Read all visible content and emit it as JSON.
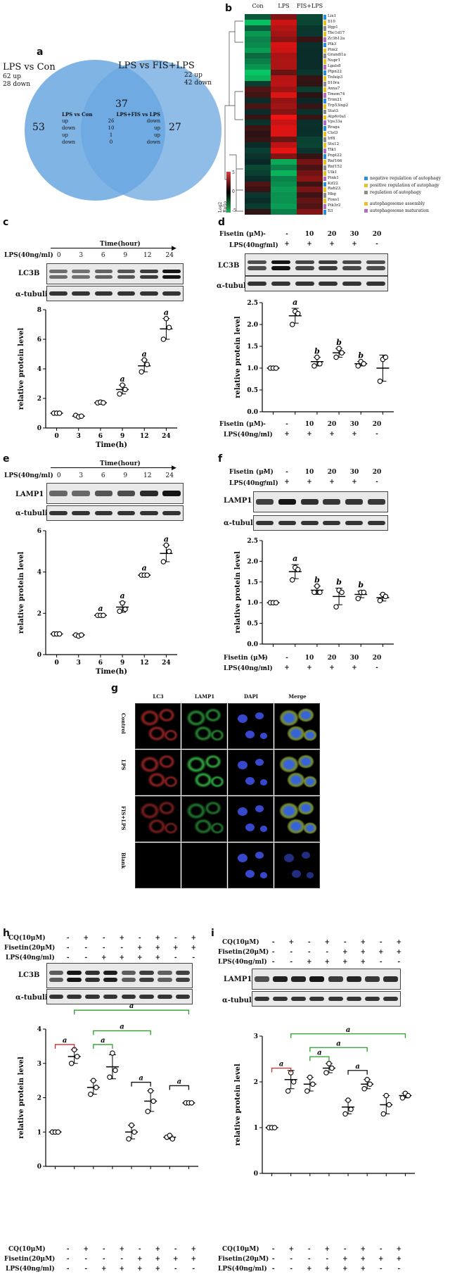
{
  "panels": {
    "a": {
      "label": "a",
      "left_title": "LPS vs Con",
      "left_up": "62 up",
      "left_down": "28 down",
      "right_title": "LPS vs FIS+LPS",
      "right_up": "22 up",
      "right_down": "42 down",
      "left_only": "53",
      "overlap": "37",
      "right_only": "27",
      "table_head_left": "LPS vs Con",
      "table_head_right": "LPS+FIS vs LPS",
      "rows": [
        {
          "l": "up",
          "n": "26",
          "r": "down"
        },
        {
          "l": "down",
          "n": "10",
          "r": "up"
        },
        {
          "l": "up",
          "n": "1",
          "r": "up"
        },
        {
          "l": "down",
          "n": "0",
          "r": "down"
        }
      ]
    },
    "b": {
      "label": "b",
      "columns": [
        "Con",
        "LPS",
        "FIS+LPS"
      ],
      "genes": [
        "Lix1",
        "Il10",
        "Ifgp1",
        "Tbc1d17",
        "Zc3h12a",
        "Plk3",
        "Pim2",
        "Grandl1a",
        "Nupr1",
        "Lgals8",
        "Ptpn22",
        "Tnfaip3",
        "Il10ra",
        "Anxa7",
        "Tmem74",
        "Trim21",
        "Trp53inp2",
        "Stat3",
        "Atp6v0a1",
        "Vps33a",
        "Rraga",
        "Ctsl3",
        "Irf8",
        "Stx12",
        "Tlk1",
        "Pnpt22",
        "Rnf166",
        "Rnf152",
        "Ulk1",
        "Pink1",
        "Kif22",
        "Rab23",
        "Hbg",
        "Foxo1",
        "Pik3r2",
        "Il3"
      ],
      "scale_title": "Log2 Ratio",
      "scale_ticks": [
        "5",
        "0",
        "-5"
      ],
      "legend": [
        {
          "text": "negative regulation of autophagy",
          "color": "#2a8fd6"
        },
        {
          "text": "positive regulation of autophagy",
          "color": "#e6c229"
        },
        {
          "text": "regulation of autophagy",
          "color": "#8c8c8c"
        },
        {
          "text": "autophagosome assembly",
          "color": "#e6c229"
        },
        {
          "text": "autophagosome maturation",
          "color": "#b36bbf"
        }
      ]
    },
    "c": {
      "label": "c",
      "time_title": "Time(hour)",
      "lps_label": "LPS(40ng/ml)",
      "times": [
        "0",
        "3",
        "6",
        "9",
        "12",
        "24"
      ],
      "blot_top": "LC3B",
      "blot_bottom": "α-tubulin",
      "ylabel": "relative protein level",
      "xlabel": "Time(h)"
    },
    "d": {
      "label": "d",
      "fis_label": "Fisetin (μM)",
      "lps_label": "LPS(40ng/ml)",
      "fis_values": [
        "-",
        "-",
        "10",
        "20",
        "30",
        "20"
      ],
      "lps_values": [
        "-",
        "+",
        "+",
        "+",
        "+",
        "-"
      ],
      "blot_top": "LC3B",
      "blot_bottom": "α-tubulin",
      "ylabel": "relative protein level"
    },
    "e": {
      "label": "e",
      "time_title": "Time(hour)",
      "lps_label": "LPS(40ng/ml)",
      "times": [
        "0",
        "3",
        "6",
        "9",
        "12",
        "24"
      ],
      "blot_top": "LAMP1",
      "blot_bottom": "α-tubulin",
      "ylabel": "relative protein level",
      "xlabel": "Time(h)"
    },
    "f": {
      "label": "f",
      "fis_label": "Fisetin (μM)",
      "lps_label": "LPS(40ng/ml)",
      "fis_values": [
        "-",
        "-",
        "10",
        "20",
        "30",
        "20"
      ],
      "lps_values": [
        "-",
        "+",
        "+",
        "+",
        "+",
        "-"
      ],
      "blot_top": "LAMP1",
      "blot_bottom": "α-tubulin",
      "ylabel": "relative protein level"
    },
    "g": {
      "label": "g",
      "cols": [
        "LC3",
        "LAMP1",
        "DAPI",
        "Merge"
      ],
      "rows": [
        "Control",
        "LPS",
        "FIS+LPS",
        "Blank"
      ]
    },
    "h": {
      "label": "h",
      "cq_label": "CQ(10μM)",
      "fis_label": "Fisetin(20μM)",
      "lps_label": "LPS(40ng/ml)",
      "cq_values": [
        "-",
        "+",
        "-",
        "+",
        "-",
        "+",
        "-",
        "+"
      ],
      "fis_values": [
        "-",
        "-",
        "-",
        "-",
        "+",
        "+",
        "+",
        "+"
      ],
      "lps_values": [
        "-",
        "-",
        "+",
        "+",
        "+",
        "+",
        "-",
        "-"
      ],
      "blot_top": "LC3B",
      "blot_bottom": "α-tubulin",
      "ylabel": "relative protein level"
    },
    "i": {
      "label": "i",
      "cq_label": "CQ(10μM)",
      "fis_label": "Fisetin(20μM)",
      "lps_label": "LPS(40ng/ml)",
      "cq_values": [
        "-",
        "+",
        "-",
        "+",
        "-",
        "+",
        "-",
        "+"
      ],
      "fis_values": [
        "-",
        "-",
        "-",
        "-",
        "+",
        "+",
        "+",
        "+"
      ],
      "lps_values": [
        "-",
        "-",
        "+",
        "+",
        "+",
        "+",
        "-",
        "-"
      ],
      "blot_top": "LAMP1",
      "blot_bottom": "α-tubulin",
      "ylabel": "relative protein level"
    }
  },
  "chart_data": [
    {
      "id": "c",
      "type": "scatter",
      "categories": [
        "0",
        "3",
        "6",
        "9",
        "12",
        "24"
      ],
      "means": [
        1.0,
        0.8,
        1.7,
        2.6,
        4.2,
        6.7
      ],
      "points": [
        [
          1.0,
          1.0,
          1.0
        ],
        [
          0.85,
          0.75,
          0.8
        ],
        [
          1.7,
          1.75,
          1.7
        ],
        [
          2.3,
          2.9,
          2.6
        ],
        [
          3.8,
          4.6,
          4.3
        ],
        [
          6.0,
          7.4,
          6.8
        ]
      ],
      "errors": [
        0.05,
        0.05,
        0.05,
        0.3,
        0.4,
        0.7
      ],
      "sig": [
        "",
        "",
        "",
        "a",
        "a",
        "a"
      ],
      "ylim": [
        0,
        8
      ],
      "yticks": [
        "0",
        "2",
        "4",
        "6",
        "8"
      ],
      "ylabel": "relative protein level",
      "xlabel": "Time(h)"
    },
    {
      "id": "d",
      "type": "scatter",
      "categories": [
        "1",
        "2",
        "3",
        "4",
        "5",
        "6"
      ],
      "means": [
        1.0,
        2.2,
        1.15,
        1.35,
        1.1,
        1.0
      ],
      "points": [
        [
          1.0,
          1.0,
          1.0
        ],
        [
          2.0,
          2.3,
          2.25
        ],
        [
          1.05,
          1.25,
          1.1
        ],
        [
          1.25,
          1.45,
          1.35
        ],
        [
          1.05,
          1.15,
          1.1
        ],
        [
          0.7,
          1.2,
          1.25
        ]
      ],
      "errors": [
        0.02,
        0.17,
        0.1,
        0.1,
        0.05,
        0.3
      ],
      "sig": [
        "",
        "a",
        "b",
        "b",
        "b",
        ""
      ],
      "ylim": [
        0,
        2.5
      ],
      "yticks": [
        "0.0",
        "0.5",
        "1.0",
        "1.5",
        "2.0",
        "2.5"
      ],
      "ylabel": "relative protein level"
    },
    {
      "id": "e",
      "type": "scatter",
      "categories": [
        "0",
        "3",
        "6",
        "9",
        "12",
        "24"
      ],
      "means": [
        1.0,
        0.95,
        1.9,
        2.3,
        3.85,
        4.9
      ],
      "points": [
        [
          1.0,
          1.0,
          1.0
        ],
        [
          0.95,
          0.9,
          0.95
        ],
        [
          1.9,
          1.9,
          1.9
        ],
        [
          2.1,
          2.5,
          2.2
        ],
        [
          3.85,
          3.85,
          3.85
        ],
        [
          4.5,
          5.3,
          5.0
        ]
      ],
      "errors": [
        0.03,
        0.03,
        0.05,
        0.25,
        0.05,
        0.4
      ],
      "sig": [
        "",
        "",
        "a",
        "a",
        "a",
        "a"
      ],
      "ylim": [
        0,
        6
      ],
      "yticks": [
        "0",
        "2",
        "4",
        "6"
      ],
      "ylabel": "relative protein level",
      "xlabel": "Time(h)"
    },
    {
      "id": "f",
      "type": "scatter",
      "categories": [
        "1",
        "2",
        "3",
        "4",
        "5",
        "6"
      ],
      "means": [
        1.0,
        1.75,
        1.3,
        1.15,
        1.2,
        1.12
      ],
      "points": [
        [
          1.0,
          1.0,
          1.0
        ],
        [
          1.55,
          1.85,
          1.8
        ],
        [
          1.25,
          1.4,
          1.25
        ],
        [
          0.9,
          1.3,
          1.25
        ],
        [
          1.1,
          1.25,
          1.25
        ],
        [
          1.05,
          1.2,
          1.15
        ]
      ],
      "errors": [
        0.02,
        0.17,
        0.1,
        0.2,
        0.08,
        0.08
      ],
      "sig": [
        "",
        "a",
        "b",
        "b",
        "b",
        ""
      ],
      "ylim": [
        0,
        2.5
      ],
      "yticks": [
        "0.0",
        "0.5",
        "1.0",
        "1.5",
        "2.0",
        "2.5"
      ],
      "ylabel": "relative protein level"
    },
    {
      "id": "h",
      "type": "scatter",
      "categories": [
        "1",
        "2",
        "3",
        "4",
        "5",
        "6",
        "7",
        "8"
      ],
      "means": [
        1.0,
        3.2,
        2.3,
        2.9,
        1.0,
        1.9,
        0.85,
        1.85
      ],
      "points": [
        [
          1.0,
          1.0,
          1.0
        ],
        [
          3.0,
          3.4,
          3.2
        ],
        [
          2.1,
          2.5,
          2.3
        ],
        [
          2.6,
          3.3,
          2.8
        ],
        [
          0.8,
          1.2,
          1.0
        ],
        [
          1.6,
          2.2,
          1.9
        ],
        [
          0.85,
          0.9,
          0.8
        ],
        [
          1.85,
          1.85,
          1.85
        ]
      ],
      "errors": [
        0.02,
        0.2,
        0.2,
        0.35,
        0.2,
        0.3,
        0.05,
        0.03
      ],
      "sig": [],
      "ylim": [
        0,
        4
      ],
      "yticks": [
        "0",
        "1",
        "2",
        "3",
        "4"
      ],
      "ylabel": "relative protein level",
      "brackets": [
        {
          "from": 1,
          "to": 2,
          "level": 3.55,
          "color": "#d62a2a",
          "label": "a"
        },
        {
          "from": 3,
          "to": 4,
          "level": 3.55,
          "color": "#2aa02a",
          "label": "a"
        },
        {
          "from": 3,
          "to": 6,
          "level": 3.95,
          "color": "#2aa02a",
          "label": "a"
        },
        {
          "from": 2,
          "to": 8,
          "level": 4.55,
          "color": "#2aa02a",
          "label": "a"
        },
        {
          "from": 1,
          "to": 2,
          "level": 3.55,
          "color": "#111111",
          "label": "a",
          "inner": true
        },
        {
          "from": 3,
          "to": 4,
          "level": 3.55,
          "color": "#111111",
          "label": "a",
          "inner": true
        },
        {
          "from": 5,
          "to": 6,
          "level": 2.45,
          "color": "#111111",
          "label": "a"
        },
        {
          "from": 7,
          "to": 8,
          "level": 2.35,
          "color": "#111111",
          "label": "a"
        }
      ]
    },
    {
      "id": "i",
      "type": "scatter",
      "categories": [
        "1",
        "2",
        "3",
        "4",
        "5",
        "6",
        "7",
        "8"
      ],
      "means": [
        1.0,
        2.05,
        1.95,
        2.3,
        1.45,
        1.95,
        1.5,
        1.7
      ],
      "points": [
        [
          1.0,
          1.0,
          1.0
        ],
        [
          1.8,
          2.2,
          2.0
        ],
        [
          1.8,
          2.1,
          1.95
        ],
        [
          2.2,
          2.4,
          2.3
        ],
        [
          1.3,
          1.6,
          1.4
        ],
        [
          1.85,
          2.05,
          1.95
        ],
        [
          1.3,
          1.7,
          1.5
        ],
        [
          1.65,
          1.75,
          1.7
        ]
      ],
      "errors": [
        0.02,
        0.2,
        0.15,
        0.1,
        0.15,
        0.1,
        0.2,
        0.05
      ],
      "sig": [],
      "ylim": [
        0,
        3
      ],
      "yticks": [
        "0",
        "1",
        "2",
        "3"
      ],
      "ylabel": "relative protein level",
      "brackets": [
        {
          "from": 1,
          "to": 2,
          "level": 2.3,
          "color": "#d62a2a",
          "label": "a"
        },
        {
          "from": 3,
          "to": 4,
          "level": 2.55,
          "color": "#2aa02a",
          "label": "a"
        },
        {
          "from": 3,
          "to": 6,
          "level": 2.75,
          "color": "#2aa02a",
          "label": "a"
        },
        {
          "from": 2,
          "to": 8,
          "level": 3.05,
          "color": "#2aa02a",
          "label": "a"
        },
        {
          "from": 5,
          "to": 6,
          "level": 2.25,
          "color": "#111111",
          "label": "a"
        }
      ]
    }
  ]
}
